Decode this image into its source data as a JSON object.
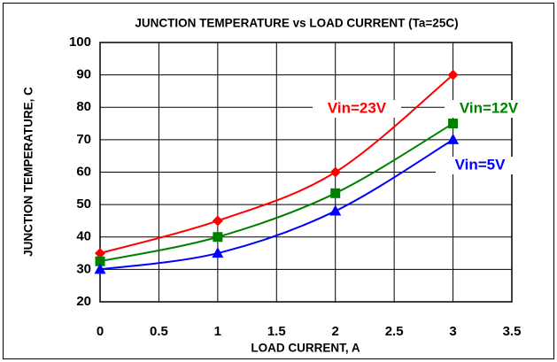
{
  "chart_data": {
    "type": "line",
    "title": "JUNCTION TEMPERATURE vs LOAD CURRENT (Ta=25C)",
    "x_label": "LOAD CURRENT, A",
    "y_label": "JUNCTION TEMPERATURE, C",
    "x": [
      0,
      1,
      2,
      3
    ],
    "series": [
      {
        "name": "Vin=23V",
        "color": "#ff0000",
        "marker": "diamond",
        "values": [
          35,
          45,
          60,
          90
        ]
      },
      {
        "name": "Vin=12V",
        "color": "#008000",
        "marker": "square",
        "values": [
          32.5,
          40,
          53.5,
          75
        ]
      },
      {
        "name": "Vin=5V",
        "color": "#0000ff",
        "marker": "triangle",
        "values": [
          30,
          35,
          48,
          70
        ]
      }
    ],
    "xlim": [
      0,
      3.5
    ],
    "xticks": [
      0,
      0.5,
      1,
      1.5,
      2,
      2.5,
      3,
      3.5
    ],
    "ylim": [
      20,
      100
    ],
    "yticks": [
      20,
      30,
      40,
      50,
      60,
      70,
      80,
      90,
      100
    ],
    "grid": true
  }
}
